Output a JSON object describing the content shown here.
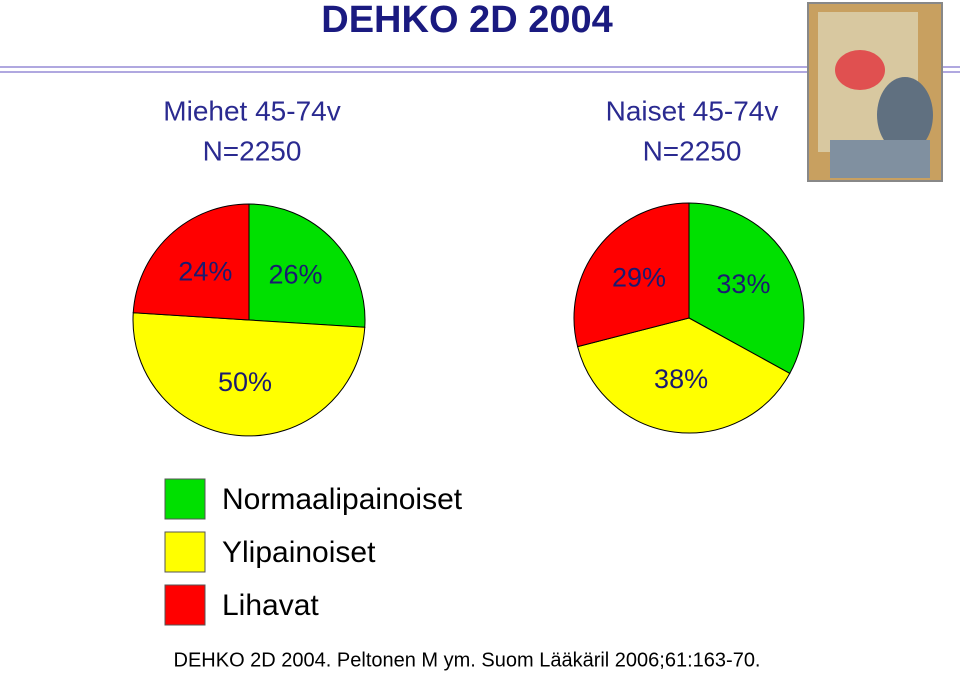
{
  "title": "DEHKO 2D 2004",
  "footer": "DEHKO 2D 2004. Peltonen M ym. Suom Lääkäril 2006;61:163-70.",
  "legend": {
    "labels": [
      "Normaalipainoiset",
      "Ylipainoiset",
      "Lihavat"
    ]
  },
  "chart_data": [
    {
      "type": "pie",
      "title": "Miehet 45-74v",
      "subtitle": "N=2250",
      "values": [
        26,
        50,
        24
      ],
      "value_labels": [
        "26%",
        "50%",
        "24%"
      ],
      "colors": [
        "#00e000",
        "#ffff00",
        "#ff0000"
      ]
    },
    {
      "type": "pie",
      "title": "Naiset 45-74v",
      "subtitle": "N=2250",
      "values": [
        33,
        38,
        29
      ],
      "value_labels": [
        "33%",
        "38%",
        "29%"
      ],
      "colors": [
        "#00e000",
        "#ffff00",
        "#ff0000"
      ]
    }
  ]
}
